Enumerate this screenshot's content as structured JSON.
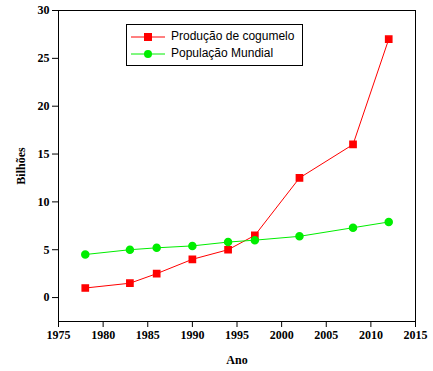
{
  "chart_data": {
    "type": "line",
    "x_label": "Ano",
    "y_label": "Bilhões",
    "x": [
      1978,
      1983,
      1986,
      1990,
      1994,
      1997,
      2002,
      2008,
      2012
    ],
    "series": [
      {
        "name": "Produção de cogumelo",
        "color": "#ff0000",
        "marker": "square",
        "values": [
          1,
          1.5,
          2.5,
          4,
          5,
          6.5,
          12.5,
          16,
          27
        ]
      },
      {
        "name": "População Mundial",
        "color": "#00ee00",
        "marker": "circle",
        "values": [
          4.5,
          5,
          5.2,
          5.4,
          5.8,
          6,
          6.4,
          7.3,
          7.9
        ]
      }
    ],
    "xlim": [
      1975,
      2015
    ],
    "xticks": [
      1975,
      1980,
      1985,
      1990,
      1995,
      2000,
      2005,
      2010,
      2015
    ],
    "ylim": [
      -2.5,
      30
    ],
    "yticks": [
      0,
      5,
      10,
      15,
      20,
      25,
      30
    ],
    "grid": false,
    "legend": "top-left"
  }
}
